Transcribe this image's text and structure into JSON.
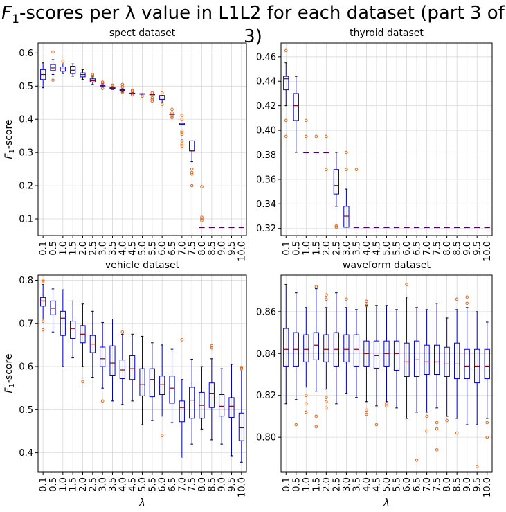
{
  "figure": {
    "title_prefix": "F",
    "title_sub": "1",
    "title_suffix": "-scores per λ value in L1L2 for each dataset (part 3 of 3)"
  },
  "colors": {
    "box": "#0000cc",
    "median": "#8b0000",
    "outlier": "#e06a1b",
    "grid": "#d9d9d9"
  },
  "chart_data": [
    {
      "type": "boxplot",
      "title": "spect dataset",
      "xlabel": "",
      "ylabel": "F1-score",
      "ylim": [
        0.05,
        0.63
      ],
      "yticks": [
        0.1,
        0.2,
        0.3,
        0.4,
        0.5,
        0.6
      ],
      "categories": [
        "0.1",
        "0.5",
        "1.0",
        "1.5",
        "2.0",
        "2.5",
        "3.0",
        "3.5",
        "4.0",
        "4.5",
        "5.0",
        "5.5",
        "6.0",
        "6.5",
        "7.0",
        "7.5",
        "8.0",
        "8.5",
        "9.0",
        "9.5",
        "10.0"
      ],
      "boxes": [
        {
          "min": 0.495,
          "q1": 0.52,
          "median": 0.535,
          "q3": 0.55,
          "max": 0.57,
          "outliers": []
        },
        {
          "min": 0.535,
          "q1": 0.547,
          "median": 0.555,
          "q3": 0.565,
          "max": 0.58,
          "outliers": [
            0.603,
            0.518
          ]
        },
        {
          "min": 0.538,
          "q1": 0.545,
          "median": 0.552,
          "q3": 0.558,
          "max": 0.567,
          "outliers": [
            0.575
          ]
        },
        {
          "min": 0.53,
          "q1": 0.538,
          "median": 0.548,
          "q3": 0.56,
          "max": 0.567,
          "outliers": []
        },
        {
          "min": 0.52,
          "q1": 0.528,
          "median": 0.535,
          "q3": 0.54,
          "max": 0.55,
          "outliers": []
        },
        {
          "min": 0.505,
          "q1": 0.512,
          "median": 0.516,
          "q3": 0.522,
          "max": 0.528,
          "outliers": [
            0.535,
            0.53
          ]
        },
        {
          "min": 0.497,
          "q1": 0.5,
          "median": 0.502,
          "q3": 0.504,
          "max": 0.507,
          "outliers": [
            0.512,
            0.509,
            0.493
          ]
        },
        {
          "min": 0.49,
          "q1": 0.493,
          "median": 0.495,
          "q3": 0.497,
          "max": 0.5,
          "outliers": [
            0.503
          ]
        },
        {
          "min": 0.482,
          "q1": 0.486,
          "median": 0.488,
          "q3": 0.49,
          "max": 0.492,
          "outliers": [
            0.498,
            0.482,
            0.505
          ]
        },
        {
          "min": 0.476,
          "q1": 0.477,
          "median": 0.478,
          "q3": 0.479,
          "max": 0.48,
          "outliers": [
            0.485,
            0.488,
            0.474
          ]
        },
        {
          "min": 0.477,
          "q1": 0.477,
          "median": 0.477,
          "q3": 0.477,
          "max": 0.477,
          "outliers": [
            0.47
          ]
        },
        {
          "min": 0.475,
          "q1": 0.475,
          "median": 0.475,
          "q3": 0.475,
          "max": 0.475,
          "outliers": [
            0.48,
            0.465,
            0.46,
            0.455
          ]
        },
        {
          "min": 0.45,
          "q1": 0.458,
          "median": 0.46,
          "q3": 0.472,
          "max": 0.472,
          "outliers": [
            0.48,
            0.445
          ]
        },
        {
          "min": 0.414,
          "q1": 0.415,
          "median": 0.415,
          "q3": 0.416,
          "max": 0.416,
          "outliers": [
            0.43,
            0.42,
            0.41,
            0.405
          ]
        },
        {
          "min": 0.383,
          "q1": 0.383,
          "median": 0.385,
          "q3": 0.388,
          "max": 0.388,
          "outliers": [
            0.412,
            0.4,
            0.365,
            0.36,
            0.355,
            0.335,
            0.325,
            0.32
          ]
        },
        {
          "min": 0.272,
          "q1": 0.305,
          "median": 0.305,
          "q3": 0.335,
          "max": 0.335,
          "outliers": [
            0.25,
            0.24,
            0.235,
            0.2
          ]
        },
        {
          "min": 0.075,
          "q1": 0.075,
          "median": 0.075,
          "q3": 0.075,
          "max": 0.075,
          "outliers": [
            0.197,
            0.105,
            0.1,
            0.095
          ]
        },
        {
          "min": 0.075,
          "q1": 0.075,
          "median": 0.075,
          "q3": 0.075,
          "max": 0.075,
          "outliers": []
        },
        {
          "min": 0.075,
          "q1": 0.075,
          "median": 0.075,
          "q3": 0.075,
          "max": 0.075,
          "outliers": []
        },
        {
          "min": 0.075,
          "q1": 0.075,
          "median": 0.075,
          "q3": 0.075,
          "max": 0.075,
          "outliers": []
        },
        {
          "min": 0.075,
          "q1": 0.075,
          "median": 0.075,
          "q3": 0.075,
          "max": 0.075,
          "outliers": []
        }
      ]
    },
    {
      "type": "boxplot",
      "title": "thyroid dataset",
      "xlabel": "",
      "ylabel": "",
      "ylim": [
        0.3142,
        0.4712
      ],
      "yticks": [
        0.32,
        0.34,
        0.36,
        0.38,
        0.4,
        0.42,
        0.44,
        0.46
      ],
      "categories": [
        "0.1",
        "0.5",
        "1.0",
        "1.5",
        "2.0",
        "2.5",
        "3.0",
        "3.5",
        "4.0",
        "4.5",
        "5.0",
        "5.5",
        "6.0",
        "6.5",
        "7.0",
        "7.5",
        "8.0",
        "8.5",
        "9.0",
        "9.5",
        "10.0"
      ],
      "boxes": [
        {
          "min": 0.42,
          "q1": 0.433,
          "median": 0.442,
          "q3": 0.444,
          "max": 0.455,
          "outliers": [
            0.465,
            0.408,
            0.395
          ]
        },
        {
          "min": 0.382,
          "q1": 0.408,
          "median": 0.42,
          "q3": 0.43,
          "max": 0.444,
          "outliers": []
        },
        {
          "min": 0.382,
          "q1": 0.382,
          "median": 0.382,
          "q3": 0.382,
          "max": 0.382,
          "outliers": [
            0.408,
            0.395
          ]
        },
        {
          "min": 0.382,
          "q1": 0.382,
          "median": 0.382,
          "q3": 0.382,
          "max": 0.382,
          "outliers": [
            0.395
          ]
        },
        {
          "min": 0.382,
          "q1": 0.382,
          "median": 0.382,
          "q3": 0.382,
          "max": 0.382,
          "outliers": [
            0.395,
            0.368
          ]
        },
        {
          "min": 0.338,
          "q1": 0.348,
          "median": 0.355,
          "q3": 0.368,
          "max": 0.382,
          "outliers": [
            0.321,
            0.322
          ]
        },
        {
          "min": 0.321,
          "q1": 0.321,
          "median": 0.33,
          "q3": 0.338,
          "max": 0.352,
          "outliers": [
            0.382,
            0.368
          ]
        },
        {
          "min": 0.321,
          "q1": 0.321,
          "median": 0.321,
          "q3": 0.321,
          "max": 0.321,
          "outliers": [
            0.368
          ]
        },
        {
          "min": 0.321,
          "q1": 0.321,
          "median": 0.321,
          "q3": 0.321,
          "max": 0.321,
          "outliers": []
        },
        {
          "min": 0.321,
          "q1": 0.321,
          "median": 0.321,
          "q3": 0.321,
          "max": 0.321,
          "outliers": []
        },
        {
          "min": 0.321,
          "q1": 0.321,
          "median": 0.321,
          "q3": 0.321,
          "max": 0.321,
          "outliers": []
        },
        {
          "min": 0.321,
          "q1": 0.321,
          "median": 0.321,
          "q3": 0.321,
          "max": 0.321,
          "outliers": []
        },
        {
          "min": 0.321,
          "q1": 0.321,
          "median": 0.321,
          "q3": 0.321,
          "max": 0.321,
          "outliers": []
        },
        {
          "min": 0.321,
          "q1": 0.321,
          "median": 0.321,
          "q3": 0.321,
          "max": 0.321,
          "outliers": []
        },
        {
          "min": 0.321,
          "q1": 0.321,
          "median": 0.321,
          "q3": 0.321,
          "max": 0.321,
          "outliers": []
        },
        {
          "min": 0.321,
          "q1": 0.321,
          "median": 0.321,
          "q3": 0.321,
          "max": 0.321,
          "outliers": []
        },
        {
          "min": 0.321,
          "q1": 0.321,
          "median": 0.321,
          "q3": 0.321,
          "max": 0.321,
          "outliers": []
        },
        {
          "min": 0.321,
          "q1": 0.321,
          "median": 0.321,
          "q3": 0.321,
          "max": 0.321,
          "outliers": []
        },
        {
          "min": 0.321,
          "q1": 0.321,
          "median": 0.321,
          "q3": 0.321,
          "max": 0.321,
          "outliers": []
        },
        {
          "min": 0.321,
          "q1": 0.321,
          "median": 0.321,
          "q3": 0.321,
          "max": 0.321,
          "outliers": []
        },
        {
          "min": 0.321,
          "q1": 0.321,
          "median": 0.321,
          "q3": 0.321,
          "max": 0.321,
          "outliers": []
        }
      ]
    },
    {
      "type": "boxplot",
      "title": "vehicle dataset",
      "xlabel": "λ",
      "ylabel": "F1-score",
      "ylim": [
        0.356,
        0.812
      ],
      "yticks": [
        0.4,
        0.5,
        0.6,
        0.7,
        0.8
      ],
      "categories": [
        "0.1",
        "0.5",
        "1.0",
        "1.5",
        "2.0",
        "2.5",
        "3.0",
        "3.5",
        "4.0",
        "4.5",
        "5.0",
        "5.5",
        "6.0",
        "6.5",
        "7.0",
        "7.5",
        "8.0",
        "8.5",
        "9.0",
        "9.5",
        "10.0"
      ],
      "boxes": [
        {
          "min": 0.71,
          "q1": 0.74,
          "median": 0.752,
          "q3": 0.76,
          "max": 0.79,
          "outliers": [
            0.8,
            0.797,
            0.705,
            0.685
          ]
        },
        {
          "min": 0.68,
          "q1": 0.72,
          "median": 0.735,
          "q3": 0.752,
          "max": 0.78,
          "outliers": []
        },
        {
          "min": 0.6,
          "q1": 0.672,
          "median": 0.712,
          "q3": 0.728,
          "max": 0.778,
          "outliers": []
        },
        {
          "min": 0.62,
          "q1": 0.665,
          "median": 0.688,
          "q3": 0.705,
          "max": 0.752,
          "outliers": []
        },
        {
          "min": 0.6,
          "q1": 0.655,
          "median": 0.675,
          "q3": 0.695,
          "max": 0.745,
          "outliers": [
            0.565
          ]
        },
        {
          "min": 0.575,
          "q1": 0.632,
          "median": 0.652,
          "q3": 0.672,
          "max": 0.728,
          "outliers": []
        },
        {
          "min": 0.55,
          "q1": 0.6,
          "median": 0.618,
          "q3": 0.645,
          "max": 0.702,
          "outliers": [
            0.52
          ]
        },
        {
          "min": 0.52,
          "q1": 0.58,
          "median": 0.608,
          "q3": 0.648,
          "max": 0.71,
          "outliers": []
        },
        {
          "min": 0.512,
          "q1": 0.572,
          "median": 0.592,
          "q3": 0.615,
          "max": 0.675,
          "outliers": [
            0.68
          ]
        },
        {
          "min": 0.52,
          "q1": 0.57,
          "median": 0.595,
          "q3": 0.625,
          "max": 0.675,
          "outliers": []
        },
        {
          "min": 0.465,
          "q1": 0.532,
          "median": 0.558,
          "q3": 0.595,
          "max": 0.67,
          "outliers": []
        },
        {
          "min": 0.475,
          "q1": 0.53,
          "median": 0.57,
          "q3": 0.595,
          "max": 0.655,
          "outliers": []
        },
        {
          "min": 0.485,
          "q1": 0.535,
          "median": 0.558,
          "q3": 0.578,
          "max": 0.65,
          "outliers": [
            0.44
          ]
        },
        {
          "min": 0.47,
          "q1": 0.515,
          "median": 0.55,
          "q3": 0.578,
          "max": 0.64,
          "outliers": []
        },
        {
          "min": 0.39,
          "q1": 0.472,
          "median": 0.505,
          "q3": 0.52,
          "max": 0.57,
          "outliers": [
            0.662
          ]
        },
        {
          "min": 0.42,
          "q1": 0.48,
          "median": 0.522,
          "q3": 0.552,
          "max": 0.617,
          "outliers": []
        },
        {
          "min": 0.455,
          "q1": 0.48,
          "median": 0.51,
          "q3": 0.54,
          "max": 0.6,
          "outliers": []
        },
        {
          "min": 0.43,
          "q1": 0.505,
          "median": 0.538,
          "q3": 0.562,
          "max": 0.618,
          "outliers": [
            0.648,
            0.643
          ]
        },
        {
          "min": 0.42,
          "q1": 0.485,
          "median": 0.508,
          "q3": 0.535,
          "max": 0.595,
          "outliers": []
        },
        {
          "min": 0.393,
          "q1": 0.482,
          "median": 0.508,
          "q3": 0.528,
          "max": 0.605,
          "outliers": []
        },
        {
          "min": 0.378,
          "q1": 0.428,
          "median": 0.458,
          "q3": 0.492,
          "max": 0.59,
          "outliers": [
            0.598,
            0.595
          ]
        }
      ]
    },
    {
      "type": "boxplot",
      "title": "waveform dataset",
      "xlabel": "λ",
      "ylabel": "",
      "ylim": [
        0.7835,
        0.8775
      ],
      "yticks": [
        0.8,
        0.82,
        0.84,
        0.86
      ],
      "categories": [
        "0.1",
        "0.5",
        "1.0",
        "1.5",
        "2.0",
        "2.5",
        "3.0",
        "3.5",
        "4.0",
        "4.5",
        "5.0",
        "5.5",
        "6.0",
        "6.5",
        "7.0",
        "7.5",
        "8.0",
        "8.5",
        "9.0",
        "9.5",
        "10.0"
      ],
      "boxes": [
        {
          "min": 0.816,
          "q1": 0.834,
          "median": 0.842,
          "q3": 0.852,
          "max": 0.873,
          "outliers": []
        },
        {
          "min": 0.818,
          "q1": 0.834,
          "median": 0.842,
          "q3": 0.85,
          "max": 0.869,
          "outliers": [
            0.806
          ]
        },
        {
          "min": 0.824,
          "q1": 0.836,
          "median": 0.842,
          "q3": 0.849,
          "max": 0.862,
          "outliers": [
            0.82,
            0.816,
            0.812
          ]
        },
        {
          "min": 0.822,
          "q1": 0.837,
          "median": 0.844,
          "q3": 0.85,
          "max": 0.871,
          "outliers": [
            0.872,
            0.81,
            0.805
          ]
        },
        {
          "min": 0.823,
          "q1": 0.836,
          "median": 0.842,
          "q3": 0.849,
          "max": 0.862,
          "outliers": [
            0.868,
            0.866,
            0.819,
            0.817,
            0.814
          ]
        },
        {
          "min": 0.816,
          "q1": 0.834,
          "median": 0.842,
          "q3": 0.85,
          "max": 0.869,
          "outliers": []
        },
        {
          "min": 0.821,
          "q1": 0.836,
          "median": 0.842,
          "q3": 0.849,
          "max": 0.862,
          "outliers": [
            0.866
          ]
        },
        {
          "min": 0.819,
          "q1": 0.834,
          "median": 0.842,
          "q3": 0.849,
          "max": 0.861,
          "outliers": []
        },
        {
          "min": 0.817,
          "q1": 0.834,
          "median": 0.84,
          "q3": 0.846,
          "max": 0.863,
          "outliers": [
            0.865,
            0.863,
            0.813,
            0.811
          ]
        },
        {
          "min": 0.815,
          "q1": 0.833,
          "median": 0.839,
          "q3": 0.846,
          "max": 0.863,
          "outliers": [
            0.806
          ]
        },
        {
          "min": 0.817,
          "q1": 0.834,
          "median": 0.84,
          "q3": 0.846,
          "max": 0.863,
          "outliers": [
            0.816,
            0.815
          ]
        },
        {
          "min": 0.814,
          "q1": 0.832,
          "median": 0.84,
          "q3": 0.846,
          "max": 0.861,
          "outliers": []
        },
        {
          "min": 0.809,
          "q1": 0.829,
          "median": 0.836,
          "q3": 0.845,
          "max": 0.867,
          "outliers": [
            0.873
          ]
        },
        {
          "min": 0.812,
          "q1": 0.829,
          "median": 0.837,
          "q3": 0.846,
          "max": 0.862,
          "outliers": [
            0.789
          ]
        },
        {
          "min": 0.812,
          "q1": 0.83,
          "median": 0.836,
          "q3": 0.844,
          "max": 0.861,
          "outliers": [
            0.81,
            0.803
          ]
        },
        {
          "min": 0.814,
          "q1": 0.83,
          "median": 0.836,
          "q3": 0.844,
          "max": 0.864,
          "outliers": [
            0.807,
            0.804,
            0.794
          ]
        },
        {
          "min": 0.81,
          "q1": 0.829,
          "median": 0.835,
          "q3": 0.843,
          "max": 0.857,
          "outliers": [
            0.808
          ]
        },
        {
          "min": 0.809,
          "q1": 0.828,
          "median": 0.835,
          "q3": 0.845,
          "max": 0.861,
          "outliers": [
            0.866,
            0.802
          ]
        },
        {
          "min": 0.806,
          "q1": 0.828,
          "median": 0.834,
          "q3": 0.842,
          "max": 0.862,
          "outliers": [
            0.867,
            0.864
          ]
        },
        {
          "min": 0.806,
          "q1": 0.826,
          "median": 0.834,
          "q3": 0.842,
          "max": 0.86,
          "outliers": [
            0.786
          ]
        },
        {
          "min": 0.809,
          "q1": 0.828,
          "median": 0.834,
          "q3": 0.842,
          "max": 0.855,
          "outliers": [
            0.807,
            0.8
          ]
        }
      ]
    }
  ]
}
